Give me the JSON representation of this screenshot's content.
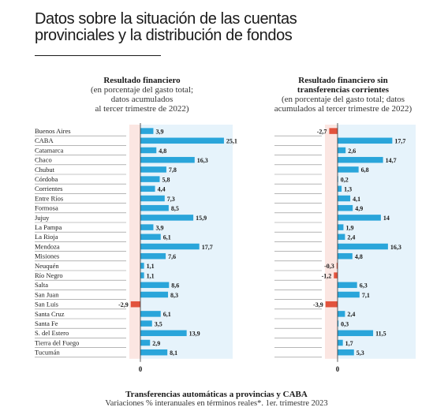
{
  "title_line1": "Datos sobre la situación de las cuentas",
  "title_line2": "provinciales y la distribución de fondos",
  "caption_title": "Transferencias automáticas a provincias y CABA",
  "caption_subtitle": "Variaciones % interanuales en términos reales*. 1er. trimestre 2023",
  "colors": {
    "bar": "#2aa5da",
    "negative_bar": "#e2533d",
    "positive_bg": "#e6f3fb",
    "negative_bg": "#fbe6e2"
  },
  "chart_data": [
    {
      "type": "bar",
      "orientation": "horizontal",
      "title": "Resultado financiero",
      "subtitle": [
        "(en porcentaje del gasto total;",
        "datos acumulados",
        "al tercer trimestre de 2022)"
      ],
      "zero_label": "0",
      "categories": [
        "Buenos Aires",
        "CABA",
        "Catamarca",
        "Chaco",
        "Chubut",
        "Córdoba",
        "Corrientes",
        "Entre Ríos",
        "Formosa",
        "Jujuy",
        "La Pampa",
        "La Rioja",
        "Mendoza",
        "Misiones",
        "Neuquén",
        "Río Negro",
        "Salta",
        "San Juan",
        "San Luis",
        "Santa Cruz",
        "Santa Fe",
        "S. del Estero",
        "Tierra del Fuego",
        "Tucumán"
      ],
      "values": [
        3.9,
        25.1,
        4.8,
        16.3,
        7.8,
        5.8,
        4.4,
        7.3,
        8.5,
        15.9,
        3.9,
        6.1,
        17.7,
        7.6,
        1.1,
        1.1,
        8.6,
        8.3,
        -2.9,
        6.1,
        3.5,
        13.9,
        2.9,
        8.1
      ],
      "value_labels": [
        "3,9",
        "25,1",
        "4,8",
        "16,3",
        "7,8",
        "5,8",
        "4,4",
        "7,3",
        "8,5",
        "15,9",
        "3,9",
        "6,1",
        "17,7",
        "7,6",
        "1,1",
        "1,1",
        "8,6",
        "8,3",
        "-2,9",
        "6,1",
        "3,5",
        "13,9",
        "2,9",
        "8,1"
      ]
    },
    {
      "type": "bar",
      "orientation": "horizontal",
      "title": [
        "Resultado financiero sin",
        "transferencias corrientes"
      ],
      "subtitle": [
        "(en porcentaje del gasto total; datos",
        "acumulados al tercer trimestre de 2022)"
      ],
      "zero_label": "0",
      "values": [
        -2.7,
        17.7,
        2.6,
        14.7,
        6.8,
        0.2,
        1.3,
        4.1,
        4.9,
        14,
        1.9,
        2.4,
        16.3,
        4.8,
        -0.3,
        -1.2,
        6.3,
        7.1,
        -3.9,
        2.4,
        0.3,
        11.5,
        1.7,
        5.3
      ],
      "value_labels": [
        "-2,7",
        "17,7",
        "2,6",
        "14,7",
        "6,8",
        "0,2",
        "1,3",
        "4,1",
        "4,9",
        "14",
        "1,9",
        "2,4",
        "16,3",
        "4,8",
        "-0,3",
        "-1,2",
        "6,3",
        "7,1",
        "-3,9",
        "2,4",
        "0,3",
        "11,5",
        "1,7",
        "5,3"
      ]
    }
  ]
}
